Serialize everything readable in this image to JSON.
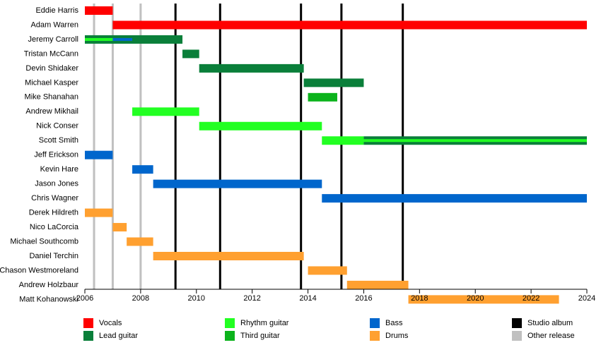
{
  "chart_data": {
    "type": "timeline",
    "xlim": [
      2006,
      2024
    ],
    "xticks": [
      2006,
      2008,
      2010,
      2012,
      2014,
      2016,
      2018,
      2020,
      2022,
      2024
    ],
    "series": [
      {
        "name": "Vocals",
        "color": "#ff0000"
      },
      {
        "name": "Lead guitar",
        "color": "#0a7f3a"
      },
      {
        "name": "Rhythm guitar",
        "color": "#22ff22"
      },
      {
        "name": "Third guitar",
        "color": "#0cb31c"
      },
      {
        "name": "Bass",
        "color": "#0066cc"
      },
      {
        "name": "Drums",
        "color": "#ffa030"
      }
    ],
    "releases": [
      {
        "name": "Studio album",
        "color": "#000000",
        "x": [
          2009.25,
          2010.85,
          2013.75,
          2015.2,
          2017.4
        ]
      },
      {
        "name": "Other release",
        "color": "#c0c0c0",
        "x": [
          2006.33,
          2007.0,
          2008.0
        ]
      }
    ],
    "members": [
      {
        "name": "Eddie Harris",
        "periods": [
          {
            "role": "Vocals",
            "start": 2006,
            "end": 2007
          }
        ]
      },
      {
        "name": "Adam Warren",
        "periods": [
          {
            "role": "Vocals",
            "start": 2007,
            "end": 2024
          }
        ]
      },
      {
        "name": "Jeremy Carroll",
        "periods": [
          {
            "role": "Lead guitar",
            "start": 2006,
            "end": 2009.5
          },
          {
            "role": "Rhythm guitar",
            "start": 2006,
            "end": 2007
          },
          {
            "role": "Bass",
            "start": 2007,
            "end": 2007.7
          }
        ]
      },
      {
        "name": "Tristan McCann",
        "periods": [
          {
            "role": "Lead guitar",
            "start": 2009.5,
            "end": 2010.1
          }
        ]
      },
      {
        "name": "Devin Shidaker",
        "periods": [
          {
            "role": "Lead guitar",
            "start": 2010.1,
            "end": 2013.85
          }
        ]
      },
      {
        "name": "Michael Kasper",
        "periods": [
          {
            "role": "Lead guitar",
            "start": 2013.85,
            "end": 2016
          }
        ]
      },
      {
        "name": "Mike Shanahan",
        "periods": [
          {
            "role": "Third guitar",
            "start": 2014,
            "end": 2015.05
          }
        ]
      },
      {
        "name": "Andrew Mikhail",
        "periods": [
          {
            "role": "Rhythm guitar",
            "start": 2007.7,
            "end": 2010.1
          }
        ]
      },
      {
        "name": "Nick Conser",
        "periods": [
          {
            "role": "Rhythm guitar",
            "start": 2010.1,
            "end": 2014.5
          }
        ]
      },
      {
        "name": "Scott Smith",
        "periods": [
          {
            "role": "Rhythm guitar",
            "start": 2014.5,
            "end": 2016
          },
          {
            "role": "Lead guitar",
            "start": 2016,
            "end": 2024
          },
          {
            "role": "Rhythm guitar",
            "start": 2016,
            "end": 2024
          }
        ]
      },
      {
        "name": "Jeff Erickson",
        "periods": [
          {
            "role": "Bass",
            "start": 2006,
            "end": 2007
          }
        ]
      },
      {
        "name": "Kevin Hare",
        "periods": [
          {
            "role": "Bass",
            "start": 2007.7,
            "end": 2008.45
          }
        ]
      },
      {
        "name": "Jason Jones",
        "periods": [
          {
            "role": "Bass",
            "start": 2008.45,
            "end": 2014.5
          }
        ]
      },
      {
        "name": "Chris Wagner",
        "periods": [
          {
            "role": "Bass",
            "start": 2014.5,
            "end": 2024
          }
        ]
      },
      {
        "name": "Derek Hildreth",
        "periods": [
          {
            "role": "Drums",
            "start": 2006,
            "end": 2007
          }
        ]
      },
      {
        "name": "Nico LaCorcia",
        "periods": [
          {
            "role": "Drums",
            "start": 2007,
            "end": 2007.5
          }
        ]
      },
      {
        "name": "Michael Southcomb",
        "periods": [
          {
            "role": "Drums",
            "start": 2007.5,
            "end": 2008.45
          }
        ]
      },
      {
        "name": "Daniel Terchin",
        "periods": [
          {
            "role": "Drums",
            "start": 2008.45,
            "end": 2013.85
          }
        ]
      },
      {
        "name": "Chason Westmoreland",
        "periods": [
          {
            "role": "Drums",
            "start": 2014,
            "end": 2015.4
          }
        ]
      },
      {
        "name": "Andrew Holzbaur",
        "periods": [
          {
            "role": "Drums",
            "start": 2015.4,
            "end": 2017.6
          }
        ]
      },
      {
        "name": "Matt Kohanowski",
        "periods": [
          {
            "role": "Drums",
            "start": 2017.6,
            "end": 2023
          }
        ]
      }
    ]
  }
}
